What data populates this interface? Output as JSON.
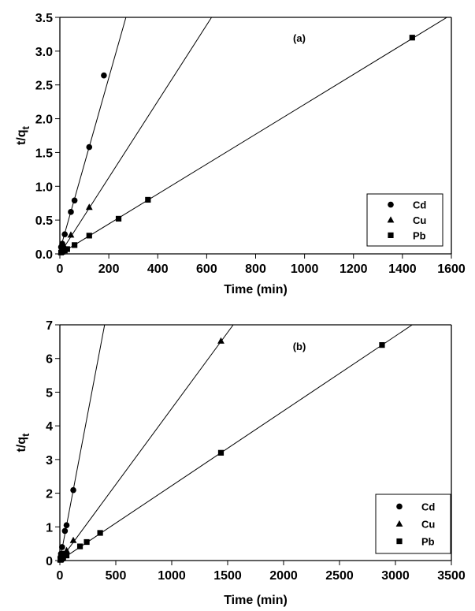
{
  "chart_data": [
    {
      "type": "scatter",
      "panel_label": "(a)",
      "xlabel": "Time (min)",
      "ylabel": "t/q",
      "ylabel_sub": "t",
      "xlim": [
        0,
        1600
      ],
      "ylim": [
        0,
        3.5
      ],
      "xticks": [
        0,
        200,
        400,
        600,
        800,
        1000,
        1200,
        1400,
        1600
      ],
      "yticks": [
        0.0,
        0.5,
        1.0,
        1.5,
        2.0,
        2.5,
        3.0,
        3.5
      ],
      "ytick_labels": [
        "0.0",
        "0.5",
        "1.0",
        "1.5",
        "2.0",
        "2.5",
        "3.0",
        "3.5"
      ],
      "legend_position": "bottom-right",
      "series": [
        {
          "name": "Cd",
          "marker": "circle",
          "x": [
            5,
            10,
            20,
            45,
            60,
            120,
            180
          ],
          "y": [
            0.1,
            0.15,
            0.29,
            0.62,
            0.79,
            1.58,
            2.64
          ],
          "fit": {
            "x": [
              0,
              270
            ],
            "y": [
              0.05,
              3.5
            ]
          }
        },
        {
          "name": "Cu",
          "marker": "triangle",
          "x": [
            5,
            10,
            20,
            45,
            120
          ],
          "y": [
            0.03,
            0.05,
            0.1,
            0.28,
            0.69
          ],
          "fit": {
            "x": [
              0,
              620
            ],
            "y": [
              0.0,
              3.5
            ]
          }
        },
        {
          "name": "Pb",
          "marker": "square",
          "x": [
            5,
            10,
            20,
            30,
            60,
            120,
            240,
            360,
            1440
          ],
          "y": [
            0.02,
            0.03,
            0.05,
            0.07,
            0.13,
            0.27,
            0.52,
            0.8,
            3.2
          ]
        },
        {
          "name": "",
          "marker": "none",
          "fit": {
            "x": [
              0,
              1600
            ],
            "y": [
              0.0,
              3.54
            ]
          }
        }
      ]
    },
    {
      "type": "scatter",
      "panel_label": "(b)",
      "xlabel": "Time (min)",
      "ylabel": "t/q",
      "ylabel_sub": "t",
      "xlim": [
        0,
        3500
      ],
      "ylim": [
        0,
        7
      ],
      "xticks": [
        0,
        500,
        1000,
        1500,
        2000,
        2500,
        3000,
        3500
      ],
      "yticks": [
        0,
        1,
        2,
        3,
        4,
        5,
        6,
        7
      ],
      "ytick_labels": [
        "0",
        "1",
        "2",
        "3",
        "4",
        "5",
        "6",
        "7"
      ],
      "legend_position": "bottom-right",
      "series": [
        {
          "name": "Cd",
          "marker": "circle",
          "x": [
            5,
            10,
            20,
            30,
            45,
            60,
            120
          ],
          "y": [
            0.1,
            0.2,
            0.4,
            0.2,
            0.88,
            1.05,
            2.09
          ],
          "fit": {
            "x": [
              0,
              400
            ],
            "y": [
              0.0,
              7.0
            ]
          }
        },
        {
          "name": "Cu",
          "marker": "triangle",
          "x": [
            5,
            10,
            20,
            30,
            60,
            120,
            1440
          ],
          "y": [
            0.03,
            0.05,
            0.1,
            0.15,
            0.3,
            0.6,
            6.52
          ],
          "fit": {
            "x": [
              0,
              1550
            ],
            "y": [
              0.0,
              7.0
            ]
          }
        },
        {
          "name": "Pb",
          "marker": "square",
          "x": [
            5,
            10,
            20,
            30,
            60,
            180,
            240,
            360,
            1440,
            2880
          ],
          "y": [
            0.02,
            0.03,
            0.06,
            0.08,
            0.15,
            0.42,
            0.55,
            0.82,
            3.2,
            6.4
          ],
          "fit": {
            "x": [
              0,
              3150
            ],
            "y": [
              0.0,
              7.0
            ]
          }
        }
      ]
    }
  ]
}
